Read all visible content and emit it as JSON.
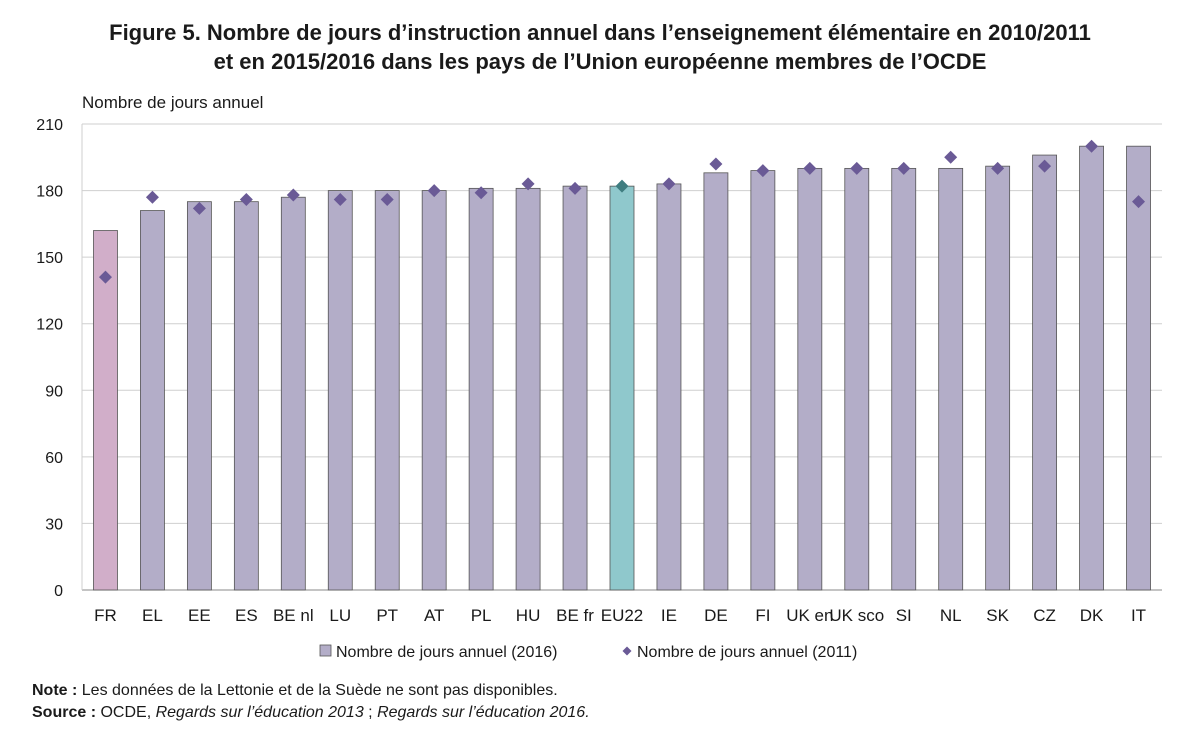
{
  "title": {
    "line1": "Figure 5.  Nombre de jours d’instruction annuel dans l’enseignement élémentaire en 2010/2011",
    "line2": "et en 2015/2016 dans les pays de l’Union européenne membres de l’OCDE"
  },
  "chart_data": {
    "type": "bar",
    "ylabel": "Nombre de jours annuel",
    "ylim": [
      0,
      210
    ],
    "yticks": [
      0,
      30,
      60,
      90,
      120,
      150,
      180,
      210
    ],
    "grid": true,
    "legend_position": "bottom",
    "categories": [
      "FR",
      "EL",
      "EE",
      "ES",
      "BE nl",
      "LU",
      "PT",
      "AT",
      "PL",
      "HU",
      "BE fr",
      "EU22",
      "IE",
      "DE",
      "FI",
      "UK en",
      "UK sco",
      "SI",
      "NL",
      "SK",
      "CZ",
      "DK",
      "IT"
    ],
    "series": [
      {
        "name": "Nombre de jours annuel (2016)",
        "kind": "bar",
        "color": "#b3adc8",
        "values": [
          162,
          171,
          175,
          175,
          177,
          180,
          180,
          180,
          181,
          181,
          182,
          182,
          183,
          188,
          189,
          190,
          190,
          190,
          190,
          191,
          196,
          200,
          200
        ]
      },
      {
        "name": "Nombre de jours annuel (2011)",
        "kind": "marker-diamond",
        "color": "#6a5a96",
        "values": [
          141,
          177,
          172,
          176,
          178,
          176,
          176,
          180,
          179,
          183,
          181,
          182,
          183,
          192,
          189,
          190,
          190,
          190,
          195,
          190,
          191,
          200,
          175
        ]
      }
    ],
    "highlight_colors": {
      "FR": "#d1aec9",
      "EU22": "#8fc8cc"
    },
    "highlight_marker_colors": {
      "EU22": "#3f7d80"
    }
  },
  "footer": {
    "note_label": "Note :",
    "note_text": " Les données de la Lettonie et de la Suède ne sont pas disponibles.",
    "source_label": "Source :",
    "source_text1": " OCDE, ",
    "source_italic1": "Regards sur l’éducation 2013",
    "source_text2": " ; ",
    "source_italic2": "Regards sur l’éducation 2016."
  }
}
